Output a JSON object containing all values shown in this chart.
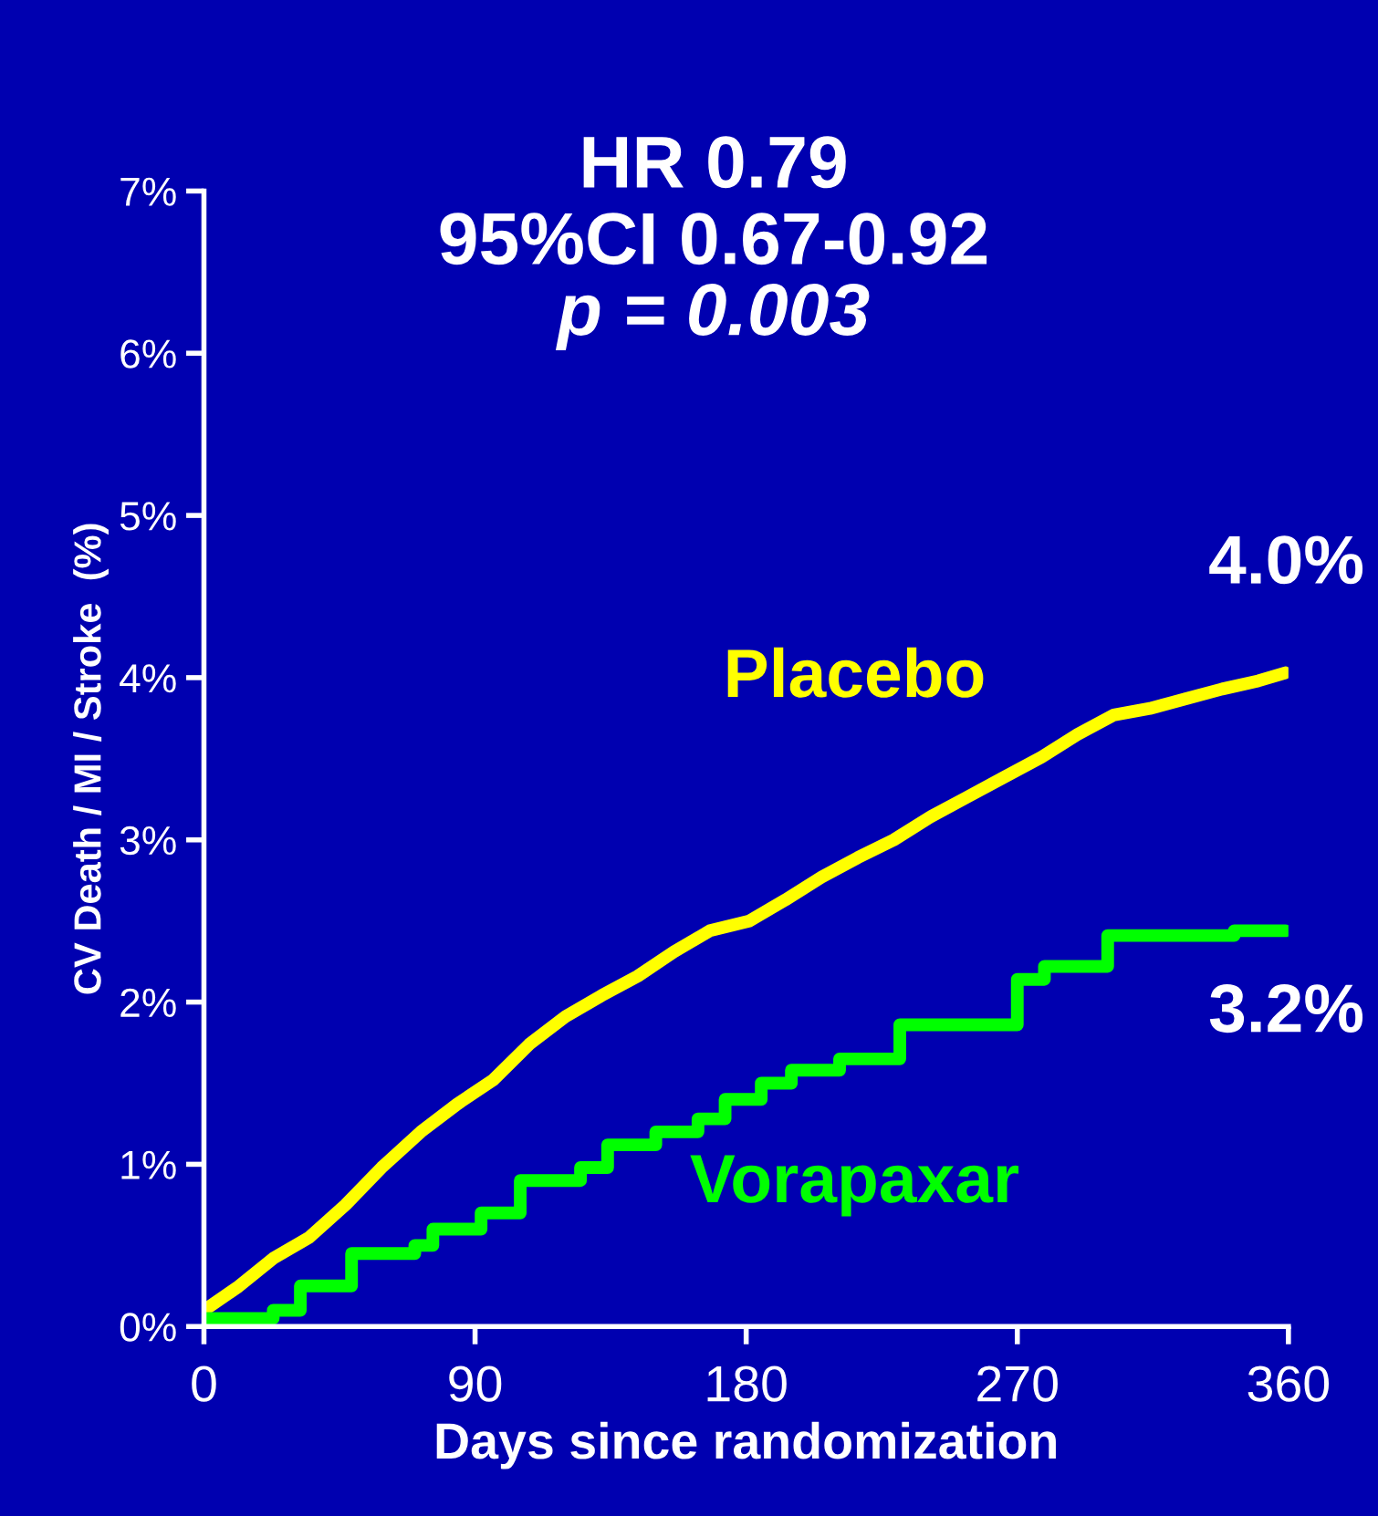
{
  "chart_data": {
    "type": "line",
    "title": "HR 0.79\n95%CI 0.67-0.92",
    "subtitle": "p = 0.003",
    "xlabel": "Days since randomization",
    "ylabel": "CV Death / MI / Stroke  (%)",
    "xlim": [
      0,
      360
    ],
    "xticks": [
      0,
      90,
      180,
      270,
      360
    ],
    "ylim": [
      0,
      7
    ],
    "yticks": [
      {
        "value": 0,
        "label": "0%"
      },
      {
        "value": 1,
        "label": "1%"
      },
      {
        "value": 2,
        "label": "2%"
      },
      {
        "value": 3,
        "label": "3%"
      },
      {
        "value": 4,
        "label": "4%"
      },
      {
        "value": 5,
        "label": "5%"
      },
      {
        "value": 6,
        "label": "6%"
      },
      {
        "value": 7,
        "label": "7%"
      }
    ],
    "grid": false,
    "marker": "none",
    "line_style": "solid",
    "series": [
      {
        "name": "Placebo",
        "color": "#ffff00",
        "x": [
          0,
          11,
          23,
          35,
          47,
          59,
          72,
          84,
          96,
          108,
          120,
          132,
          144,
          156,
          168,
          181,
          193,
          205,
          217,
          229,
          241,
          253,
          265,
          278,
          290,
          302,
          314,
          326,
          338,
          350,
          359
        ],
        "values": [
          0.1,
          0.24,
          0.42,
          0.55,
          0.75,
          0.98,
          1.2,
          1.37,
          1.52,
          1.74,
          1.91,
          2.04,
          2.16,
          2.31,
          2.44,
          2.5,
          2.63,
          2.77,
          2.89,
          3.0,
          3.14,
          3.26,
          3.38,
          3.51,
          3.65,
          3.77,
          3.81,
          3.87,
          3.93,
          3.98,
          4.03
        ]
      },
      {
        "name": "Vorapaxar",
        "color": "#00ff00",
        "type": "step",
        "x": [
          0,
          23,
          32,
          49,
          70,
          76,
          92,
          105,
          125,
          134,
          150,
          164,
          173,
          185,
          195,
          211,
          231,
          270,
          279,
          300,
          342,
          359
        ],
        "values": [
          0.05,
          0.1,
          0.25,
          0.45,
          0.5,
          0.6,
          0.7,
          0.9,
          0.98,
          1.12,
          1.2,
          1.28,
          1.4,
          1.5,
          1.58,
          1.65,
          1.86,
          2.14,
          2.22,
          2.41,
          2.44,
          2.44
        ]
      }
    ],
    "annotations": [
      "4.0%",
      "3.2%"
    ]
  }
}
